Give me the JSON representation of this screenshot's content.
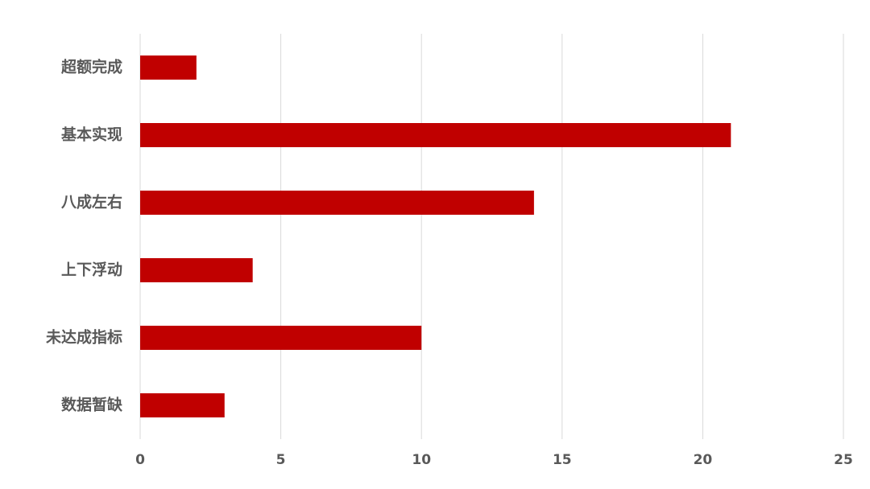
{
  "chart_data": {
    "type": "bar",
    "orientation": "horizontal",
    "categories": [
      "超额完成",
      "基本实现",
      "八成左右",
      "上下浮动",
      "未达成指标",
      "数据暂缺"
    ],
    "values": [
      2,
      21,
      14,
      4,
      10,
      3
    ],
    "color": "#c00000",
    "xlim": [
      0,
      25
    ],
    "xticks": [
      0,
      5,
      10,
      15,
      20,
      25
    ],
    "grid": true
  }
}
